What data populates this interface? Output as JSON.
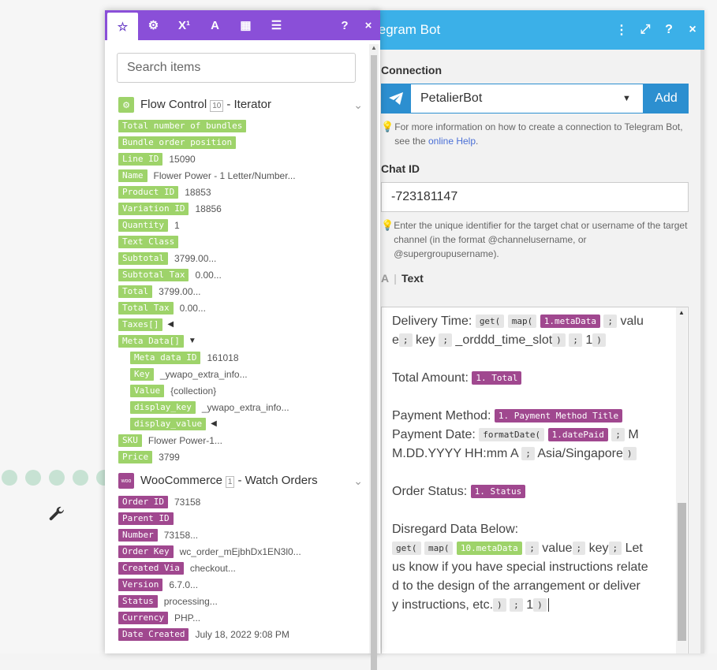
{
  "right_panel": {
    "title": "legram Bot",
    "connection_label": "Connection",
    "connection_value": "PetalierBot",
    "add_label": "Add",
    "connection_hint_prefix": "For more information on how to create a connection to Telegram Bot, see the ",
    "connection_hint_link": "online Help",
    "connection_hint_suffix": ".",
    "chat_id_label": "Chat ID",
    "chat_id_value": "-723181147",
    "chat_id_hint": "Enter the unique identifier for the target chat or username of the target channel (in the format @channelusername, or @supergroupusername).",
    "text_label": "Text",
    "text_label_icon": "A"
  },
  "left_panel": {
    "search_placeholder": "Search items",
    "modules": [
      {
        "num_badge": "10",
        "name": "Flow Control",
        "suffix": "- Iterator",
        "icon_color": "#9ed36a"
      },
      {
        "num_badge": "1",
        "name": "WooCommerce",
        "suffix": "- Watch Orders",
        "icon_color": "#a0488f"
      }
    ],
    "flow_items": [
      {
        "label": "Total number of bundles",
        "value": ""
      },
      {
        "label": "Bundle order position",
        "value": ""
      },
      {
        "label": "Line ID",
        "value": "15090"
      },
      {
        "label": "Name",
        "value": "Flower Power - 1 Letter/Number..."
      },
      {
        "label": "Product ID",
        "value": "18853"
      },
      {
        "label": "Variation ID",
        "value": "18856"
      },
      {
        "label": "Quantity",
        "value": "1"
      },
      {
        "label": "Text Class",
        "value": ""
      },
      {
        "label": "Subtotal",
        "value": "3799.00..."
      },
      {
        "label": "Subtotal Tax",
        "value": "0.00..."
      },
      {
        "label": "Total",
        "value": "3799.00..."
      },
      {
        "label": "Total Tax",
        "value": "0.00..."
      },
      {
        "label": "Taxes[]",
        "value": ""
      },
      {
        "label": "Meta Data[]",
        "value": ""
      }
    ],
    "meta_items": [
      {
        "label": "Meta data ID",
        "value": "161018"
      },
      {
        "label": "Key",
        "value": "_ywapo_extra_info..."
      },
      {
        "label": "Value",
        "value": "{collection}"
      },
      {
        "label": "display_key",
        "value": "_ywapo_extra_info..."
      },
      {
        "label": "display_value",
        "value": ""
      }
    ],
    "flow_tail": [
      {
        "label": "SKU",
        "value": "Flower Power-1..."
      },
      {
        "label": "Price",
        "value": "3799"
      }
    ],
    "woo_items": [
      {
        "label": "Order ID",
        "value": "73158"
      },
      {
        "label": "Parent ID",
        "value": ""
      },
      {
        "label": "Number",
        "value": "73158..."
      },
      {
        "label": "Order Key",
        "value": "wc_order_mEjbhDx1EN3l0..."
      },
      {
        "label": "Created Via",
        "value": "checkout..."
      },
      {
        "label": "Version",
        "value": "6.7.0..."
      },
      {
        "label": "Status",
        "value": "processing..."
      },
      {
        "label": "Currency",
        "value": "PHP..."
      },
      {
        "label": "Date Created",
        "value": "July 18, 2022 9:08 PM"
      }
    ]
  },
  "editor": {
    "delivery_label": "Delivery Time:",
    "get": "get(",
    "map": "map(",
    "meta1": "1.metaData",
    "semi": ";",
    "value_word_a": "valu",
    "value_word_b": "e",
    "key_word": "key",
    "slot": "_orddd_time_slot",
    "close": ")",
    "one": "1",
    "total_label": "Total Amount:",
    "total_pill": "1. Total",
    "pay_method_label": "Payment Method:",
    "pay_method_pill": "1. Payment Method Title",
    "pay_date_label": "Payment Date:",
    "format_date": "formatDate(",
    "date_paid": "1.datePaid",
    "date_fmt_a": "M",
    "date_fmt_b": "M.DD.YYYY HH:mm A",
    "tz": "Asia/Singapore",
    "status_label": "Order Status:",
    "status_pill": "1. Status",
    "disregard_label": "Disregard Data Below:",
    "meta10": "10.metaData",
    "value_word": "value",
    "let_us": "Let",
    "text_l2": "us know if you have special instructions relate",
    "text_l3": "d to the design of the arrangement or deliver",
    "text_l4": "y instructions, etc."
  }
}
